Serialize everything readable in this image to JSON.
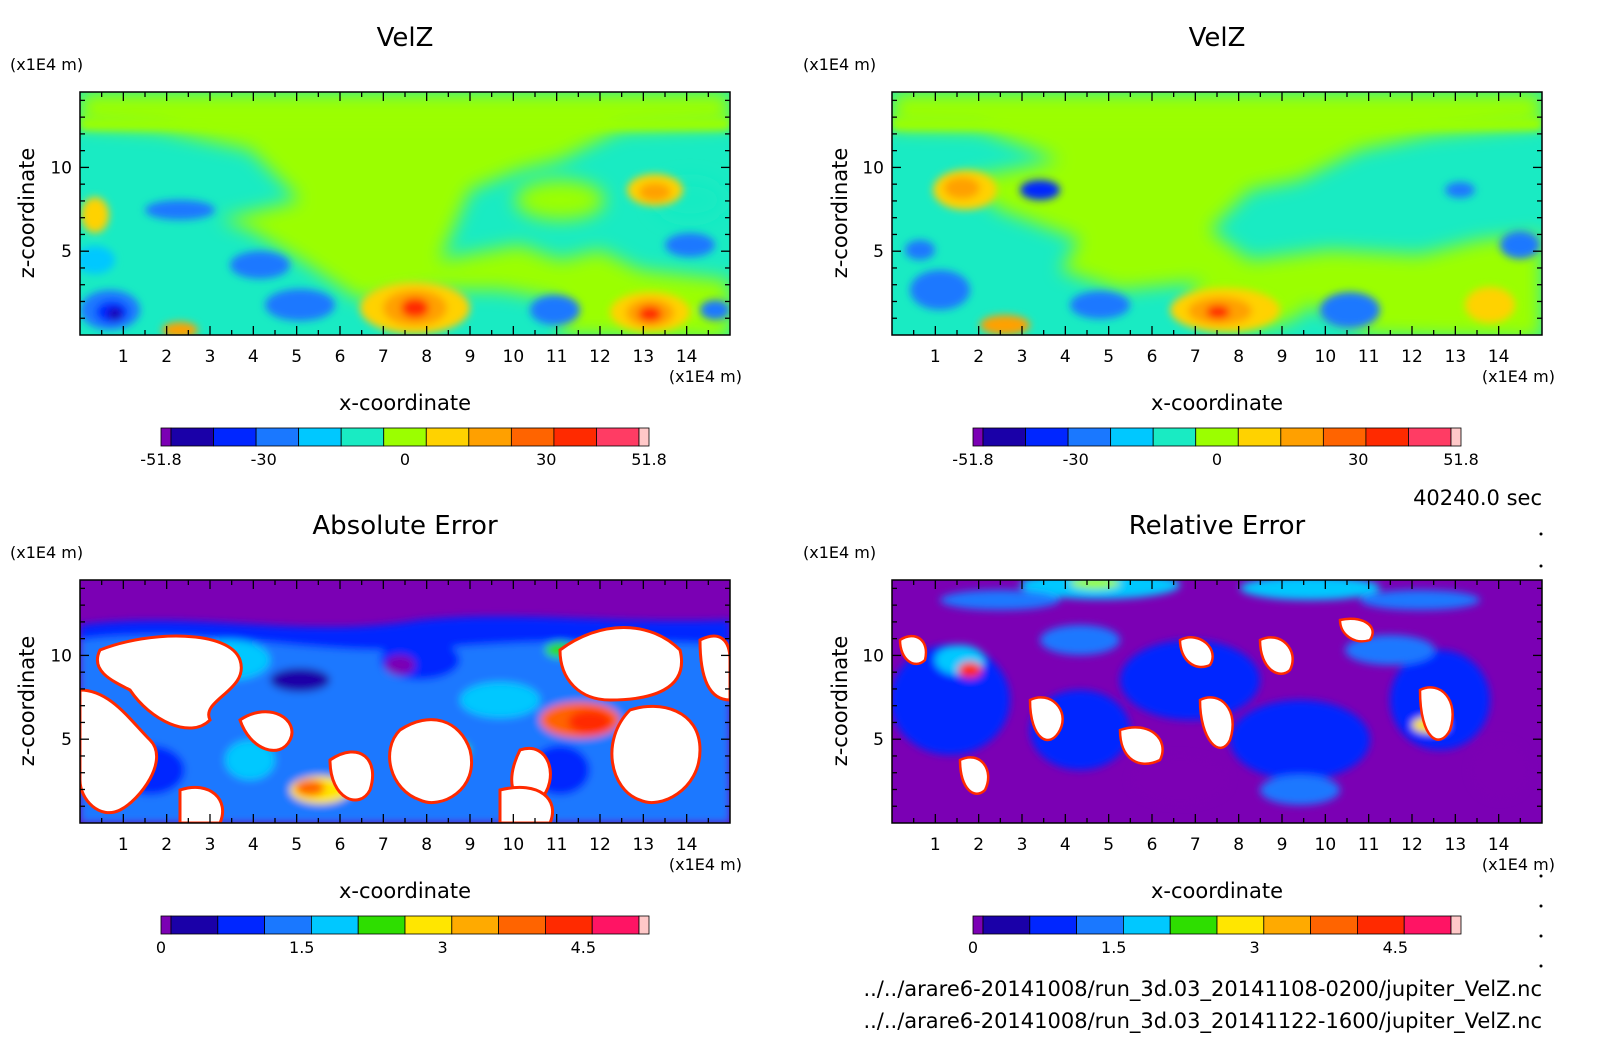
{
  "time_label": "40240.0 sec",
  "file_lines": [
    "../../arare6-20141008/run_3d.03_20141108-0200/jupiter_VelZ.nc",
    "../../arare6-20141008/run_3d.03_20141122-1600/jupiter_VelZ.nc"
  ],
  "colorscales": {
    "velz": [
      "#7b00b4",
      "#1a00a8",
      "#0026ff",
      "#1a78ff",
      "#00c8ff",
      "#19ebc3",
      "#9bff00",
      "#ffd200",
      "#ffa000",
      "#ff6400",
      "#ff2a00",
      "#ff3c64",
      "#ffc8c8"
    ],
    "err": [
      "#7b00b4",
      "#1a00a8",
      "#0026ff",
      "#1a78ff",
      "#00c8ff",
      "#2ede00",
      "#ffe600",
      "#ffaa00",
      "#ff6400",
      "#ff2a00",
      "#ff1464",
      "#ffc8c8"
    ]
  },
  "chart_data": [
    {
      "type": "heatmap",
      "title": "VelZ",
      "xlabel": "x-coordinate",
      "ylabel": "z-coordinate",
      "x_unit": "(x1E4 m)",
      "y_unit": "(x1E4 m)",
      "xlim": [
        0,
        15
      ],
      "ylim": [
        0,
        14.5
      ],
      "xticks": [
        "1",
        "2",
        "3",
        "4",
        "5",
        "6",
        "7",
        "8",
        "9",
        "10",
        "11",
        "12",
        "13",
        "14"
      ],
      "yticks": [
        "5",
        "10"
      ],
      "colorbar_ticks": [
        "-51.8",
        "-30",
        "0",
        "30",
        "51.8"
      ],
      "colorbar_range": [
        -51.8,
        51.8
      ],
      "features": [
        {
          "x": 7.8,
          "z": 1.6,
          "value": 48
        },
        {
          "x": 13.1,
          "z": 1.2,
          "value": 49
        },
        {
          "x": 0.9,
          "z": 1.4,
          "value": -48
        },
        {
          "x": 13.0,
          "z": 8.5,
          "value": 25
        }
      ]
    },
    {
      "type": "heatmap",
      "title": "VelZ",
      "xlabel": "x-coordinate",
      "ylabel": "z-coordinate",
      "x_unit": "(x1E4 m)",
      "y_unit": "(x1E4 m)",
      "xlim": [
        0,
        15
      ],
      "ylim": [
        0,
        14.5
      ],
      "xticks": [
        "1",
        "2",
        "3",
        "4",
        "5",
        "6",
        "7",
        "8",
        "9",
        "10",
        "11",
        "12",
        "13",
        "14"
      ],
      "yticks": [
        "5",
        "10"
      ],
      "colorbar_ticks": [
        "-51.8",
        "-30",
        "0",
        "30",
        "51.8"
      ],
      "colorbar_range": [
        -51.8,
        51.8
      ],
      "features": [
        {
          "x": 7.5,
          "z": 1.5,
          "value": 45
        },
        {
          "x": 1.8,
          "z": 9.2,
          "value": 30
        },
        {
          "x": 3.0,
          "z": 0.6,
          "value": 30
        }
      ]
    },
    {
      "type": "heatmap",
      "title": "Absolute Error",
      "xlabel": "x-coordinate",
      "ylabel": "z-coordinate",
      "x_unit": "(x1E4 m)",
      "y_unit": "(x1E4 m)",
      "xlim": [
        0,
        15
      ],
      "ylim": [
        0,
        14.5
      ],
      "xticks": [
        "1",
        "2",
        "3",
        "4",
        "5",
        "6",
        "7",
        "8",
        "9",
        "10",
        "11",
        "12",
        "13",
        "14"
      ],
      "yticks": [
        "5",
        "10"
      ],
      "colorbar_ticks": [
        "0",
        "1.5",
        "3",
        "4.5"
      ],
      "colorbar_range": [
        0,
        5.2
      ]
    },
    {
      "type": "heatmap",
      "title": "Relative Error",
      "xlabel": "x-coordinate",
      "ylabel": "z-coordinate",
      "x_unit": "(x1E4 m)",
      "y_unit": "(x1E4 m)",
      "xlim": [
        0,
        15
      ],
      "ylim": [
        0,
        14.5
      ],
      "xticks": [
        "1",
        "2",
        "3",
        "4",
        "5",
        "6",
        "7",
        "8",
        "9",
        "10",
        "11",
        "12",
        "13",
        "14"
      ],
      "yticks": [
        "5",
        "10"
      ],
      "colorbar_ticks": [
        "0",
        "1.5",
        "3",
        "4.5"
      ],
      "colorbar_range": [
        0,
        5.2
      ]
    }
  ]
}
